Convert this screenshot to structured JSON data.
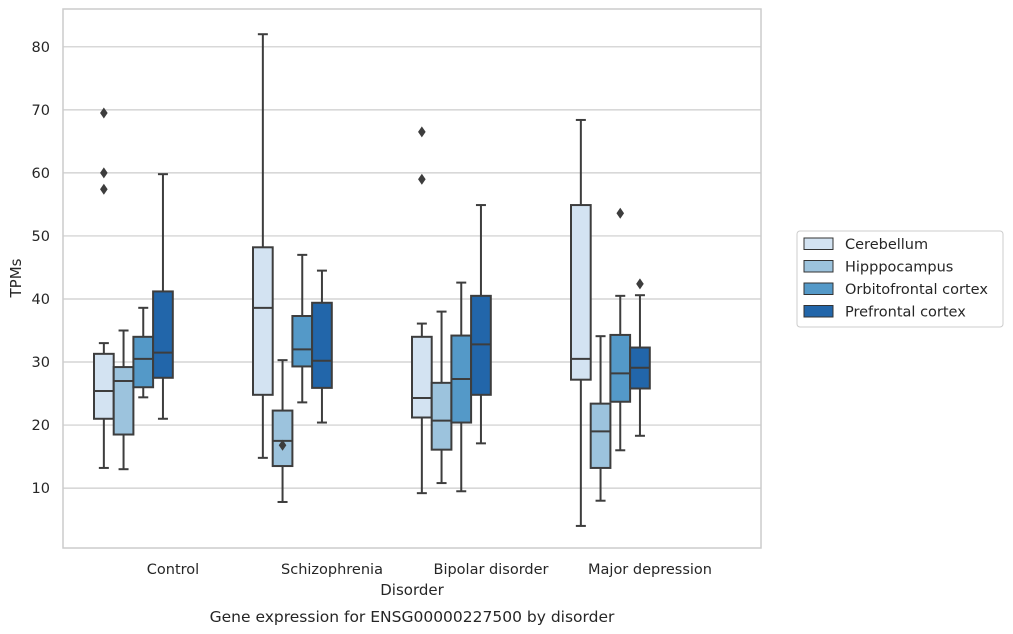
{
  "caption": "Gene expression for ENSG00000227500 by disorder",
  "chart_data": {
    "type": "box",
    "xlabel": "Disorder",
    "ylabel": "TPMs",
    "ylim": [
      0.5,
      86
    ],
    "yticks": [
      10,
      20,
      30,
      40,
      50,
      60,
      70,
      80
    ],
    "grid": "horizontal",
    "legend_position": "right",
    "categories": [
      "Control",
      "Schizophrenia",
      "Bipolar disorder",
      "Major depression"
    ],
    "series": [
      {
        "name": "Cerebellum",
        "color": "#d3e3f2",
        "boxes": [
          {
            "whislo": 13.2,
            "q1": 21.0,
            "med": 25.4,
            "q3": 31.3,
            "whishi": 33.0,
            "fliers": [
              57.4,
              60.0,
              69.5
            ]
          },
          {
            "whislo": 14.8,
            "q1": 24.8,
            "med": 38.6,
            "q3": 48.2,
            "whishi": 82.0,
            "fliers": []
          },
          {
            "whislo": 9.2,
            "q1": 21.2,
            "med": 24.3,
            "q3": 34.0,
            "whishi": 36.1,
            "fliers": [
              59.0,
              66.5
            ]
          },
          {
            "whislo": 4.0,
            "q1": 27.2,
            "med": 30.5,
            "q3": 54.9,
            "whishi": 68.4,
            "fliers": []
          }
        ]
      },
      {
        "name": "Hipppocampus",
        "color": "#9cc3dd",
        "boxes": [
          {
            "whislo": 13.0,
            "q1": 18.5,
            "med": 27.0,
            "q3": 29.2,
            "whishi": 35.0,
            "fliers": []
          },
          {
            "whislo": 7.8,
            "q1": 13.5,
            "med": 17.5,
            "q3": 22.3,
            "whishi": 30.3,
            "fliers": [
              16.8
            ]
          },
          {
            "whislo": 10.8,
            "q1": 16.1,
            "med": 20.7,
            "q3": 26.7,
            "whishi": 38.0,
            "fliers": []
          },
          {
            "whislo": 8.0,
            "q1": 13.2,
            "med": 19.0,
            "q3": 23.4,
            "whishi": 34.1,
            "fliers": []
          }
        ]
      },
      {
        "name": "Orbitofrontal cortex",
        "color": "#5499c8",
        "boxes": [
          {
            "whislo": 24.4,
            "q1": 26.0,
            "med": 30.5,
            "q3": 34.0,
            "whishi": 38.6,
            "fliers": []
          },
          {
            "whislo": 23.6,
            "q1": 29.3,
            "med": 32.0,
            "q3": 37.3,
            "whishi": 47.0,
            "fliers": []
          },
          {
            "whislo": 9.5,
            "q1": 20.4,
            "med": 27.3,
            "q3": 34.2,
            "whishi": 42.6,
            "fliers": []
          },
          {
            "whislo": 16.0,
            "q1": 23.7,
            "med": 28.2,
            "q3": 34.3,
            "whishi": 40.5,
            "fliers": [
              53.6
            ]
          }
        ]
      },
      {
        "name": "Prefrontal cortex",
        "color": "#2266aa",
        "boxes": [
          {
            "whislo": 21.0,
            "q1": 27.5,
            "med": 31.5,
            "q3": 41.2,
            "whishi": 59.8,
            "fliers": []
          },
          {
            "whislo": 20.4,
            "q1": 25.9,
            "med": 30.2,
            "q3": 39.4,
            "whishi": 44.5,
            "fliers": []
          },
          {
            "whislo": 17.1,
            "q1": 24.8,
            "med": 32.8,
            "q3": 40.5,
            "whishi": 54.9,
            "fliers": []
          },
          {
            "whislo": 18.3,
            "q1": 25.8,
            "med": 29.1,
            "q3": 32.3,
            "whishi": 40.6,
            "fliers": [
              42.4
            ]
          }
        ]
      }
    ]
  }
}
